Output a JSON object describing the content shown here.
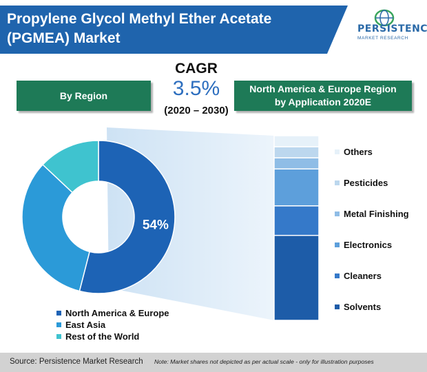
{
  "title": {
    "line1": "Propylene Glycol Methyl Ether Acetate",
    "line2": "(PGMEA) Market"
  },
  "logo": {
    "name": "PERSISTENCE",
    "sub": "MARKET RESEARCH"
  },
  "region_box": "By Region",
  "application_box": {
    "line1": "North America & Europe  Region",
    "line2": "by Application 2020E"
  },
  "cagr": {
    "label": "CAGR",
    "value": "3.5%",
    "period": "(2020 – 2030)"
  },
  "colors": {
    "title_blue": "#1f64ad",
    "green": "#1e7a57",
    "north_america_europe": "#1d63b5",
    "east_asia": "#2b9ad8",
    "rest_of_world": "#3fc3cf"
  },
  "chart_data": [
    {
      "type": "pie",
      "title": "By Region",
      "categories": [
        "North America & Europe",
        "East Asia",
        "Rest of the World"
      ],
      "values": [
        54,
        33,
        13
      ],
      "data_labels": [
        "54%",
        "",
        ""
      ],
      "legend_placement": "bottom-left"
    },
    {
      "type": "bar",
      "title": "North America & Europe  Region by Application 2020E",
      "stacked": true,
      "categories": [
        "Others",
        "Pesticides",
        "Metal Finishing",
        "Electronics",
        "Cleaners",
        "Solvents"
      ],
      "values": [
        6,
        6,
        6,
        20,
        16,
        46
      ],
      "legend_placement": "right"
    }
  ],
  "footer": {
    "source": "Source: Persistence Market Research",
    "note": "Note: Market shares not depicted as per actual scale - only for illustration purposes"
  }
}
